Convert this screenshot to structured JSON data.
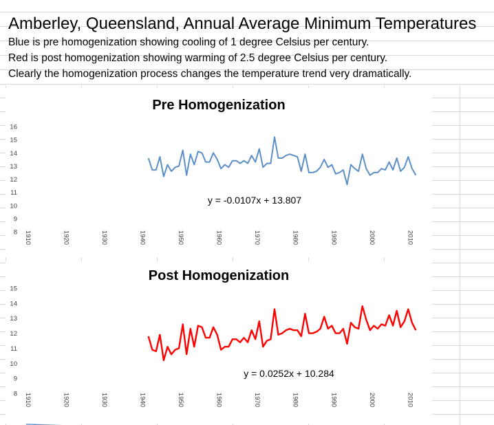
{
  "heading": {
    "title": "Amberley, Queensland, Annual Average Minimum Temperatures",
    "lines": [
      "Blue is pre homogenization showing cooling of 1 degree Celsius per century.",
      "Red is post homogenization showing warming of 2.5 degree Celsius per century.",
      "Clearly the homogenization process changes the temperature trend very dramatically."
    ]
  },
  "chart_data": [
    {
      "type": "line",
      "title": "Pre Homogenization",
      "color": "#5b8fc7",
      "xlim": [
        1910,
        2013
      ],
      "ylim": [
        8,
        16
      ],
      "x_ticks": [
        1910,
        1920,
        1930,
        1940,
        1950,
        1960,
        1970,
        1980,
        1990,
        2000,
        2010
      ],
      "y_ticks": [
        8,
        9,
        10,
        11,
        12,
        13,
        14,
        15,
        16
      ],
      "series": [
        {
          "x": [
            1942,
            1943,
            1944,
            1945,
            1946,
            1947,
            1948,
            1949,
            1950,
            1951,
            1952,
            1953,
            1954,
            1955,
            1956,
            1957,
            1958,
            1959,
            1960,
            1961,
            1962,
            1963,
            1964,
            1965,
            1966,
            1967,
            1968,
            1969,
            1970,
            1971,
            1972,
            1973,
            1974,
            1975,
            1976,
            1977,
            1978,
            1979,
            1980,
            1981,
            1982,
            1983,
            1984,
            1985,
            1986,
            1987,
            1988,
            1989,
            1990,
            1991,
            1992,
            1993,
            1994,
            1995,
            1996,
            1997,
            1998,
            1999,
            2000,
            2001,
            2002,
            2003,
            2004,
            2005,
            2006,
            2007,
            2008,
            2009,
            2010,
            2011,
            2012
          ],
          "y": [
            13.6,
            12.7,
            12.7,
            13.7,
            12.2,
            13.1,
            12.6,
            12.9,
            13.0,
            14.2,
            12.3,
            13.9,
            13.1,
            14.1,
            14.0,
            13.3,
            13.3,
            14.0,
            13.5,
            12.8,
            13.1,
            12.9,
            13.4,
            13.4,
            13.2,
            13.4,
            13.2,
            13.8,
            13.3,
            14.3,
            12.9,
            13.2,
            13.2,
            15.2,
            13.6,
            13.6,
            13.8,
            13.9,
            13.8,
            13.7,
            12.6,
            13.9,
            12.5,
            12.5,
            12.6,
            12.9,
            13.5,
            12.9,
            13.1,
            12.4,
            12.5,
            12.7,
            11.6,
            13.1,
            12.8,
            12.6,
            13.9,
            12.8,
            12.3,
            12.5,
            12.5,
            12.8,
            12.7,
            13.3,
            12.7,
            13.6,
            12.6,
            12.9,
            13.7,
            12.8,
            12.3
          ]
        }
      ],
      "trendline": {
        "slope": -0.0107,
        "intercept": 13.807,
        "x_from": 1910,
        "x_to": 2013,
        "label": "y = -0.0107x + 13.807"
      }
    },
    {
      "type": "line",
      "title": "Post Homogenization",
      "color": "#ff0000",
      "xlim": [
        1910,
        2013
      ],
      "ylim": [
        8,
        15
      ],
      "x_ticks": [
        1910,
        1920,
        1930,
        1940,
        1950,
        1960,
        1970,
        1980,
        1990,
        2000,
        2010
      ],
      "y_ticks": [
        8,
        9,
        10,
        11,
        12,
        13,
        14,
        15
      ],
      "series": [
        {
          "x": [
            1942,
            1943,
            1944,
            1945,
            1946,
            1947,
            1948,
            1949,
            1950,
            1951,
            1952,
            1953,
            1954,
            1955,
            1956,
            1957,
            1958,
            1959,
            1960,
            1961,
            1962,
            1963,
            1964,
            1965,
            1966,
            1967,
            1968,
            1969,
            1970,
            1971,
            1972,
            1973,
            1974,
            1975,
            1976,
            1977,
            1978,
            1979,
            1980,
            1981,
            1982,
            1983,
            1984,
            1985,
            1986,
            1987,
            1988,
            1989,
            1990,
            1991,
            1992,
            1993,
            1994,
            1995,
            1996,
            1997,
            1998,
            1999,
            2000,
            2001,
            2002,
            2003,
            2004,
            2005,
            2006,
            2007,
            2008,
            2009,
            2010,
            2011,
            2012
          ],
          "y": [
            11.8,
            10.9,
            10.8,
            11.9,
            10.2,
            11.1,
            10.6,
            10.9,
            11.0,
            12.6,
            10.6,
            12.3,
            11.1,
            12.5,
            12.4,
            11.7,
            11.7,
            12.4,
            11.9,
            10.9,
            11.1,
            11.1,
            11.6,
            11.6,
            11.4,
            11.7,
            11.4,
            12.2,
            11.6,
            12.8,
            11.1,
            11.5,
            11.6,
            13.6,
            11.9,
            12.0,
            12.2,
            12.3,
            12.2,
            12.2,
            11.8,
            13.3,
            12.0,
            12.0,
            12.1,
            12.3,
            13.1,
            12.3,
            12.5,
            12.0,
            12.0,
            12.3,
            11.3,
            12.7,
            12.4,
            12.3,
            13.8,
            12.9,
            12.2,
            12.5,
            12.3,
            12.6,
            12.5,
            13.2,
            12.5,
            13.5,
            12.4,
            12.8,
            13.6,
            12.7,
            12.2
          ]
        }
      ],
      "trendline": {
        "slope": 0.0252,
        "intercept": 10.284,
        "x_from": 1910,
        "x_to": 2013,
        "label": "y = 0.0252x + 10.284"
      }
    }
  ]
}
